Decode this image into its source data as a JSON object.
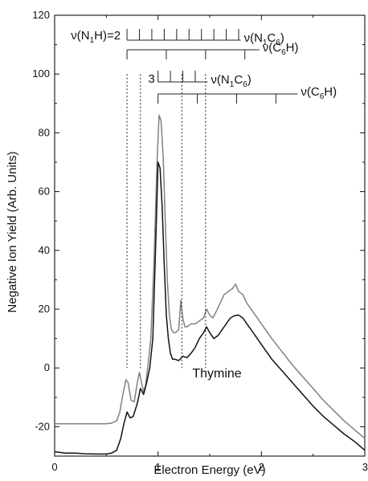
{
  "chart_data": {
    "type": "line",
    "title": "",
    "xlabel": "Electron Energy (eV)",
    "ylabel": "Negative Ion Yield (Arb. Units)",
    "xlim": [
      0,
      3
    ],
    "ylim": [
      -30,
      120
    ],
    "xticks": [
      0,
      1,
      2,
      3
    ],
    "yticks": [
      -20,
      0,
      20,
      40,
      60,
      80,
      100,
      120
    ],
    "grid": false,
    "legend": "none",
    "annotation": "Thymine",
    "colors": {
      "upper_curve": "#808080",
      "lower_curve": "#111111",
      "lines": "#222222"
    },
    "series": [
      {
        "color": "#808080",
        "x": [
          0.0,
          0.1,
          0.2,
          0.3,
          0.4,
          0.5,
          0.55,
          0.6,
          0.63,
          0.66,
          0.69,
          0.71,
          0.74,
          0.77,
          0.8,
          0.82,
          0.84,
          0.86,
          0.88,
          0.9,
          0.93,
          0.96,
          0.99,
          1.01,
          1.03,
          1.05,
          1.07,
          1.09,
          1.11,
          1.13,
          1.15,
          1.17,
          1.2,
          1.22,
          1.24,
          1.26,
          1.28,
          1.32,
          1.36,
          1.4,
          1.44,
          1.47,
          1.5,
          1.53,
          1.56,
          1.6,
          1.64,
          1.68,
          1.72,
          1.75,
          1.78,
          1.82,
          1.86,
          1.9,
          2.0,
          2.1,
          2.2,
          2.3,
          2.4,
          2.5,
          2.6,
          2.7,
          2.8,
          2.9,
          3.0
        ],
        "y": [
          -19,
          -19,
          -19,
          -19,
          -19,
          -19,
          -18.8,
          -18,
          -15,
          -9,
          -4,
          -5,
          -11,
          -11.5,
          -5,
          -1.5,
          -5,
          -8,
          -6,
          0,
          10,
          35,
          70,
          86,
          84,
          72,
          50,
          30,
          18,
          13,
          12,
          12,
          13,
          23,
          17,
          14,
          14,
          15,
          15,
          16,
          17,
          20,
          18,
          17,
          19,
          22,
          25,
          26,
          27,
          28.5,
          26,
          25,
          22,
          20,
          15,
          10,
          5.5,
          1,
          -3,
          -7,
          -11,
          -14.5,
          -18,
          -21,
          -24
        ]
      },
      {
        "color": "#111111",
        "x": [
          0.0,
          0.1,
          0.2,
          0.3,
          0.4,
          0.5,
          0.55,
          0.6,
          0.64,
          0.67,
          0.7,
          0.73,
          0.76,
          0.8,
          0.83,
          0.86,
          0.89,
          0.92,
          0.95,
          0.98,
          1.0,
          1.02,
          1.04,
          1.06,
          1.08,
          1.1,
          1.12,
          1.14,
          1.16,
          1.2,
          1.24,
          1.28,
          1.32,
          1.36,
          1.4,
          1.44,
          1.47,
          1.5,
          1.54,
          1.58,
          1.62,
          1.66,
          1.7,
          1.74,
          1.78,
          1.82,
          1.86,
          1.9,
          2.0,
          2.1,
          2.2,
          2.3,
          2.4,
          2.5,
          2.6,
          2.7,
          2.8,
          2.9,
          3.0
        ],
        "y": [
          -28.5,
          -29,
          -29,
          -29.2,
          -29.3,
          -29.3,
          -29,
          -28,
          -24,
          -19,
          -15,
          -17,
          -16.5,
          -12,
          -7,
          -9,
          -5,
          0,
          10,
          45,
          70,
          68,
          55,
          35,
          18,
          10,
          5,
          3,
          3,
          2.5,
          4,
          3.5,
          5,
          7,
          10,
          12,
          14,
          12,
          10,
          11,
          13,
          15,
          17,
          17.8,
          18,
          17,
          15,
          13,
          8,
          3,
          -1,
          -5,
          -9,
          -13,
          -16.5,
          -19.5,
          -22.5,
          -25,
          -28
        ]
      }
    ],
    "progressions": [
      {
        "label": "ν(N1H)=2",
        "row": 1,
        "x_start": 0.7,
        "x_end": 1.8,
        "ticks": [
          0.7,
          0.82,
          0.94,
          1.06,
          1.18,
          1.3,
          1.42,
          1.54,
          1.66,
          1.78
        ],
        "end_label": "ν(N1C6)"
      },
      {
        "row": 2,
        "x_start": 0.7,
        "x_end": 1.98,
        "ticks": [
          0.7,
          1.08,
          1.46,
          1.84
        ],
        "end_label": "ν(C6H)"
      },
      {
        "label": "3",
        "row": 3,
        "x_start": 1.0,
        "x_end": 1.48,
        "ticks": [
          1.0,
          1.12,
          1.24,
          1.36
        ],
        "end_label": "ν(N1C6)"
      },
      {
        "row": 4,
        "x_start": 1.0,
        "x_end": 2.35,
        "ticks": [
          1.0,
          1.38,
          1.76,
          2.14
        ],
        "end_label": "ν(C6H)"
      }
    ],
    "dotted_lines": [
      0.7,
      0.83,
      1.23,
      1.46
    ]
  }
}
